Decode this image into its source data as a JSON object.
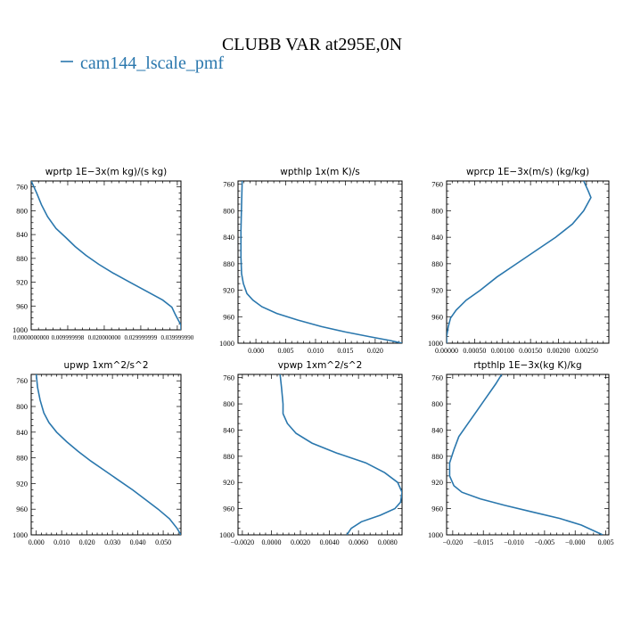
{
  "figure": {
    "title": "CLUBB VAR at295E,0N",
    "legend_label": "cam144_lscale_pmf",
    "line_color": "#2a77ad"
  },
  "chart_data": [
    {
      "type": "line",
      "title": "wprtp   1E−3x(m kg)/(s kg)",
      "xlim": [
        0.0,
        0.041
      ],
      "ylim": [
        1000,
        750
      ],
      "xticks": [
        0.0,
        0.01,
        0.02,
        0.03,
        0.04
      ],
      "xtick_labels": [
        "0.0000000000",
        "0.009999998",
        "0.020000000",
        "0.029999999",
        "0.039999990"
      ],
      "yticks": [
        760,
        800,
        840,
        880,
        920,
        960,
        1000
      ],
      "series": [
        {
          "x": [
            0.0,
            0.0015,
            0.0028,
            0.0045,
            0.0068,
            0.0095,
            0.012,
            0.015,
            0.0185,
            0.0225,
            0.027,
            0.0315,
            0.036,
            0.0385,
            0.0395,
            0.041,
            0.041
          ],
          "y": [
            750,
            770,
            790,
            810,
            830,
            845,
            860,
            875,
            890,
            905,
            920,
            935,
            950,
            962,
            975,
            992,
            1000
          ]
        }
      ]
    },
    {
      "type": "line",
      "title": "wpthlp   1x(m K)/s",
      "xlim": [
        -0.003,
        0.0245
      ],
      "ylim": [
        1000,
        755
      ],
      "xticks": [
        0.0,
        0.005,
        0.01,
        0.015,
        0.02
      ],
      "xtick_labels": [
        "0.000",
        "0.005",
        "0.010",
        "0.015",
        "0.020"
      ],
      "yticks": [
        760,
        800,
        840,
        880,
        920,
        960,
        1000
      ],
      "series": [
        {
          "x": [
            -0.0023,
            -0.0024,
            -0.0025,
            -0.0025,
            -0.0024,
            -0.0021,
            -0.0015,
            -0.0005,
            0.001,
            0.0035,
            0.007,
            0.011,
            0.015,
            0.019,
            0.0225,
            0.0245
          ],
          "y": [
            755,
            790,
            830,
            870,
            895,
            910,
            925,
            935,
            945,
            955,
            965,
            975,
            983,
            990,
            996,
            1000
          ]
        }
      ]
    },
    {
      "type": "line",
      "title": "wprcp   1E−3x(m/s) (kg/kg)",
      "xlim": [
        0.0,
        0.0029
      ],
      "ylim": [
        1000,
        755
      ],
      "xticks": [
        0.0,
        0.0005,
        0.001,
        0.0015,
        0.002,
        0.0025
      ],
      "xtick_labels": [
        "0.00000",
        "0.00050",
        "0.00100",
        "0.00150",
        "0.00200",
        "0.00250"
      ],
      "yticks": [
        760,
        800,
        840,
        880,
        920,
        960,
        1000
      ],
      "series": [
        {
          "x": [
            0.00245,
            0.00253,
            0.00258,
            0.00245,
            0.00225,
            0.00195,
            0.0016,
            0.00125,
            0.0009,
            0.0006,
            0.00035,
            0.00017,
            7e-05,
            3e-05,
            0.0,
            0.0
          ],
          "y": [
            755,
            770,
            780,
            800,
            820,
            840,
            860,
            880,
            900,
            920,
            935,
            950,
            962,
            975,
            990,
            1000
          ]
        }
      ]
    },
    {
      "type": "line",
      "title": "upwp   1xm^2/s^2",
      "xlim": [
        -0.002,
        0.057
      ],
      "ylim": [
        1000,
        750
      ],
      "xticks": [
        0.0,
        0.01,
        0.02,
        0.03,
        0.04,
        0.05
      ],
      "xtick_labels": [
        "0.000",
        "0.010",
        "0.020",
        "0.030",
        "0.040",
        "0.050"
      ],
      "yticks": [
        760,
        800,
        840,
        880,
        920,
        960,
        1000
      ],
      "series": [
        {
          "x": [
            0.0,
            0.0005,
            0.0015,
            0.003,
            0.005,
            0.008,
            0.012,
            0.0165,
            0.0215,
            0.027,
            0.0325,
            0.038,
            0.043,
            0.048,
            0.0525,
            0.0555,
            0.057
          ],
          "y": [
            750,
            770,
            790,
            810,
            825,
            840,
            855,
            870,
            885,
            900,
            915,
            930,
            945,
            960,
            975,
            990,
            1000
          ]
        }
      ]
    },
    {
      "type": "line",
      "title": "vpwp   1xm^2/s^2",
      "xlim": [
        -0.0023,
        0.009
      ],
      "ylim": [
        1000,
        755
      ],
      "xticks": [
        -0.002,
        0.0,
        0.002,
        0.004,
        0.006,
        0.008
      ],
      "xtick_labels": [
        "−0.0020",
        "0.0000",
        "0.0020",
        "0.0040",
        "0.0060",
        "0.0080"
      ],
      "yticks": [
        760,
        800,
        840,
        880,
        920,
        960,
        1000
      ],
      "series": [
        {
          "x": [
            0.0006,
            0.0007,
            0.0008,
            0.0008,
            0.0011,
            0.0017,
            0.0028,
            0.0045,
            0.0065,
            0.0078,
            0.0087,
            0.009,
            0.0089,
            0.0085,
            0.0075,
            0.0062,
            0.0055,
            0.0052
          ],
          "y": [
            755,
            775,
            800,
            815,
            830,
            845,
            860,
            875,
            890,
            905,
            920,
            935,
            950,
            960,
            970,
            980,
            990,
            1000
          ]
        }
      ]
    },
    {
      "type": "line",
      "title": "rtpthlp   1E−3x(kg K)/kg",
      "xlim": [
        -0.021,
        0.0055
      ],
      "ylim": [
        1000,
        755
      ],
      "xticks": [
        -0.02,
        -0.015,
        -0.01,
        -0.005,
        0.0,
        0.005
      ],
      "xtick_labels": [
        "−0.020",
        "−0.015",
        "−0.010",
        "−0.005",
        "−0.000",
        "0.005"
      ],
      "yticks": [
        760,
        800,
        840,
        880,
        920,
        960,
        1000
      ],
      "series": [
        {
          "x": [
            -0.012,
            -0.013,
            -0.0145,
            -0.016,
            -0.0175,
            -0.019,
            -0.0198,
            -0.0205,
            -0.0205,
            -0.0198,
            -0.0185,
            -0.0155,
            -0.0115,
            -0.007,
            -0.0025,
            0.001,
            0.0045
          ],
          "y": [
            755,
            770,
            790,
            810,
            830,
            850,
            870,
            890,
            910,
            925,
            935,
            945,
            955,
            965,
            975,
            985,
            1000
          ]
        }
      ]
    }
  ]
}
